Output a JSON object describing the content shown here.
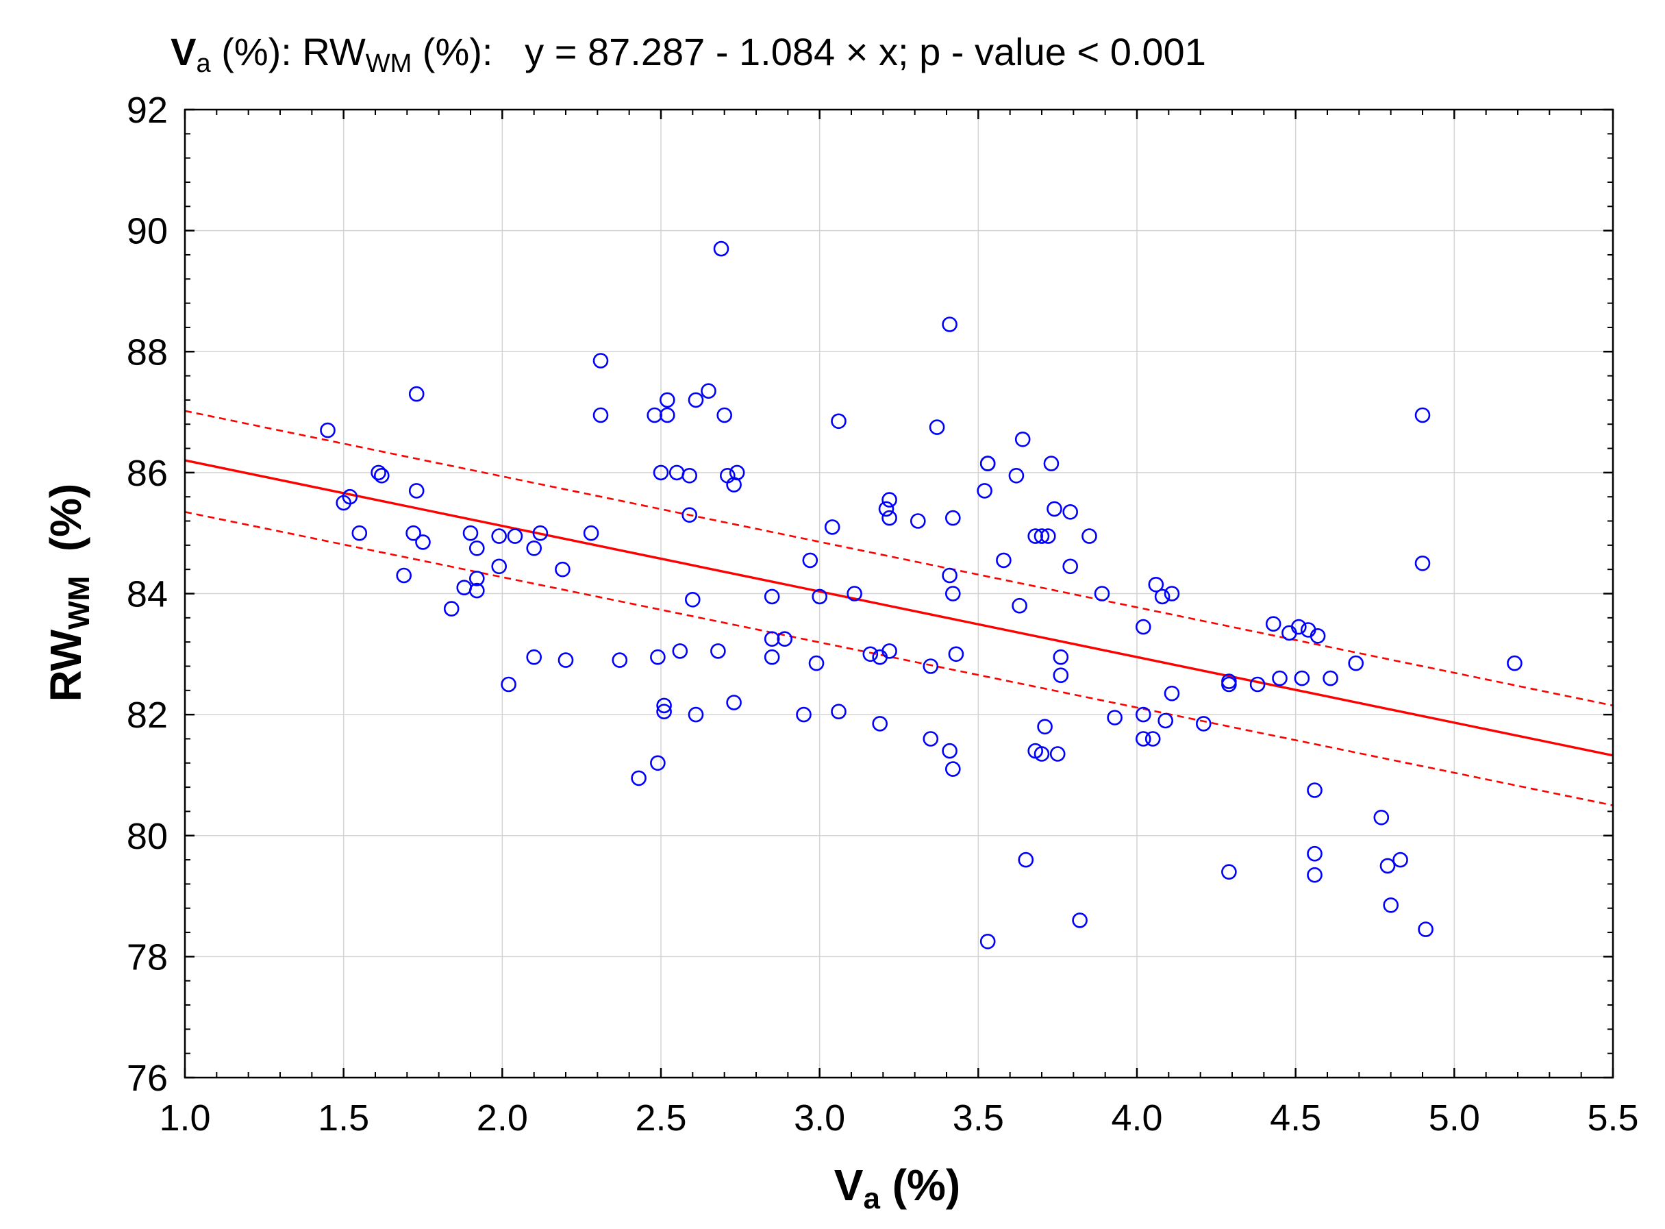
{
  "title": {
    "x_var": "V",
    "x_sub": "a",
    "x_unit": " (%): ",
    "y_var": "RW",
    "y_sub": "WM",
    "y_unit": "  (%):",
    "equation": "y = 87.287 - 1.084 × x; p - value < 0.001"
  },
  "xlabel": {
    "var": "V",
    "sub": "a",
    "unit": " (%)"
  },
  "ylabel": {
    "var": "RW",
    "sub": "WM",
    "unit": "  (%)"
  },
  "x_tick_labels": [
    "1.0",
    "1.5",
    "2.0",
    "2.5",
    "3.0",
    "3.5",
    "4.0",
    "4.5",
    "5.0",
    "5.5"
  ],
  "y_tick_labels": [
    "76",
    "78",
    "80",
    "82",
    "84",
    "86",
    "88",
    "90",
    "92"
  ],
  "colors": {
    "points": "#0000ff",
    "fit": "#ff0000",
    "grid": "#d4d4d4"
  },
  "chart_data": {
    "type": "scatter",
    "title": "Va (%): RWWM (%): y = 87.287 - 1.084 × x; p - value < 0.001",
    "xlabel": "Va (%)",
    "ylabel": "RWWM (%)",
    "xlim": [
      1.0,
      5.5
    ],
    "ylim": [
      76,
      92
    ],
    "x_ticks": [
      1.0,
      1.5,
      2.0,
      2.5,
      3.0,
      3.5,
      4.0,
      4.5,
      5.0,
      5.5
    ],
    "y_ticks": [
      76,
      78,
      80,
      82,
      84,
      86,
      88,
      90,
      92
    ],
    "grid": true,
    "regression": {
      "intercept": 87.287,
      "slope": -1.084,
      "style": "solid red line"
    },
    "confidence_band": {
      "style": "dashed red lines",
      "upper": [
        [
          1.0,
          87.02
        ],
        [
          5.5,
          82.15
        ]
      ],
      "lower": [
        [
          1.0,
          85.35
        ],
        [
          5.5,
          80.5
        ]
      ]
    },
    "points": [
      [
        1.45,
        86.7
      ],
      [
        1.5,
        85.5
      ],
      [
        1.52,
        85.6
      ],
      [
        1.55,
        85.0
      ],
      [
        1.61,
        86.0
      ],
      [
        1.62,
        85.95
      ],
      [
        1.69,
        84.3
      ],
      [
        1.72,
        85.0
      ],
      [
        1.73,
        85.7
      ],
      [
        1.73,
        87.3
      ],
      [
        1.75,
        84.85
      ],
      [
        1.84,
        83.75
      ],
      [
        1.88,
        84.1
      ],
      [
        1.9,
        85.0
      ],
      [
        1.92,
        84.75
      ],
      [
        1.92,
        84.25
      ],
      [
        1.92,
        84.05
      ],
      [
        1.99,
        84.45
      ],
      [
        1.99,
        84.95
      ],
      [
        2.02,
        82.5
      ],
      [
        2.04,
        84.95
      ],
      [
        2.1,
        82.95
      ],
      [
        2.1,
        84.75
      ],
      [
        2.12,
        85.0
      ],
      [
        2.19,
        84.4
      ],
      [
        2.2,
        82.9
      ],
      [
        2.28,
        85.0
      ],
      [
        2.31,
        87.85
      ],
      [
        2.31,
        86.95
      ],
      [
        2.37,
        82.9
      ],
      [
        2.43,
        80.95
      ],
      [
        2.48,
        86.95
      ],
      [
        2.49,
        82.95
      ],
      [
        2.49,
        81.2
      ],
      [
        2.5,
        86.0
      ],
      [
        2.51,
        82.15
      ],
      [
        2.51,
        82.05
      ],
      [
        2.52,
        87.2
      ],
      [
        2.52,
        86.95
      ],
      [
        2.55,
        86.0
      ],
      [
        2.56,
        83.05
      ],
      [
        2.59,
        85.95
      ],
      [
        2.59,
        85.3
      ],
      [
        2.6,
        83.9
      ],
      [
        2.61,
        87.2
      ],
      [
        2.61,
        82.0
      ],
      [
        2.65,
        87.35
      ],
      [
        2.68,
        83.05
      ],
      [
        2.69,
        89.7
      ],
      [
        2.7,
        86.95
      ],
      [
        2.71,
        85.95
      ],
      [
        2.73,
        85.8
      ],
      [
        2.73,
        82.2
      ],
      [
        2.74,
        86.0
      ],
      [
        2.85,
        83.95
      ],
      [
        2.85,
        83.25
      ],
      [
        2.85,
        82.95
      ],
      [
        2.89,
        83.25
      ],
      [
        2.95,
        82.0
      ],
      [
        2.97,
        84.55
      ],
      [
        2.99,
        82.85
      ],
      [
        3.0,
        83.95
      ],
      [
        3.04,
        85.1
      ],
      [
        3.06,
        86.85
      ],
      [
        3.06,
        82.05
      ],
      [
        3.11,
        84.0
      ],
      [
        3.16,
        83.0
      ],
      [
        3.19,
        82.95
      ],
      [
        3.19,
        81.85
      ],
      [
        3.21,
        85.4
      ],
      [
        3.22,
        85.55
      ],
      [
        3.22,
        85.25
      ],
      [
        3.22,
        83.05
      ],
      [
        3.31,
        85.2
      ],
      [
        3.35,
        82.8
      ],
      [
        3.35,
        81.6
      ],
      [
        3.37,
        86.75
      ],
      [
        3.41,
        88.45
      ],
      [
        3.41,
        84.3
      ],
      [
        3.41,
        81.4
      ],
      [
        3.42,
        85.25
      ],
      [
        3.42,
        84.0
      ],
      [
        3.42,
        81.1
      ],
      [
        3.43,
        83.0
      ],
      [
        3.52,
        85.7
      ],
      [
        3.53,
        86.15
      ],
      [
        3.53,
        86.15
      ],
      [
        3.53,
        78.25
      ],
      [
        3.58,
        84.55
      ],
      [
        3.62,
        85.95
      ],
      [
        3.63,
        83.8
      ],
      [
        3.64,
        86.55
      ],
      [
        3.65,
        79.6
      ],
      [
        3.68,
        84.95
      ],
      [
        3.68,
        81.4
      ],
      [
        3.7,
        84.95
      ],
      [
        3.7,
        81.35
      ],
      [
        3.71,
        81.8
      ],
      [
        3.72,
        84.95
      ],
      [
        3.73,
        86.15
      ],
      [
        3.74,
        85.4
      ],
      [
        3.75,
        81.35
      ],
      [
        3.76,
        82.95
      ],
      [
        3.76,
        82.65
      ],
      [
        3.79,
        85.35
      ],
      [
        3.79,
        84.45
      ],
      [
        3.82,
        78.6
      ],
      [
        3.85,
        84.95
      ],
      [
        3.89,
        84.0
      ],
      [
        3.93,
        81.95
      ],
      [
        4.02,
        83.45
      ],
      [
        4.02,
        82.0
      ],
      [
        4.02,
        81.6
      ],
      [
        4.05,
        81.6
      ],
      [
        4.06,
        84.15
      ],
      [
        4.08,
        83.95
      ],
      [
        4.09,
        81.9
      ],
      [
        4.11,
        84.0
      ],
      [
        4.11,
        82.35
      ],
      [
        4.21,
        81.85
      ],
      [
        4.29,
        82.55
      ],
      [
        4.29,
        82.5
      ],
      [
        4.29,
        79.4
      ],
      [
        4.38,
        82.5
      ],
      [
        4.43,
        83.5
      ],
      [
        4.45,
        82.6
      ],
      [
        4.48,
        83.35
      ],
      [
        4.51,
        83.45
      ],
      [
        4.52,
        82.6
      ],
      [
        4.54,
        83.4
      ],
      [
        4.56,
        80.75
      ],
      [
        4.56,
        79.7
      ],
      [
        4.56,
        79.35
      ],
      [
        4.57,
        83.3
      ],
      [
        4.61,
        82.6
      ],
      [
        4.69,
        82.85
      ],
      [
        4.77,
        80.3
      ],
      [
        4.79,
        79.5
      ],
      [
        4.8,
        78.85
      ],
      [
        4.83,
        79.6
      ],
      [
        4.9,
        86.95
      ],
      [
        4.9,
        84.5
      ],
      [
        4.91,
        78.45
      ],
      [
        5.19,
        82.85
      ]
    ]
  }
}
